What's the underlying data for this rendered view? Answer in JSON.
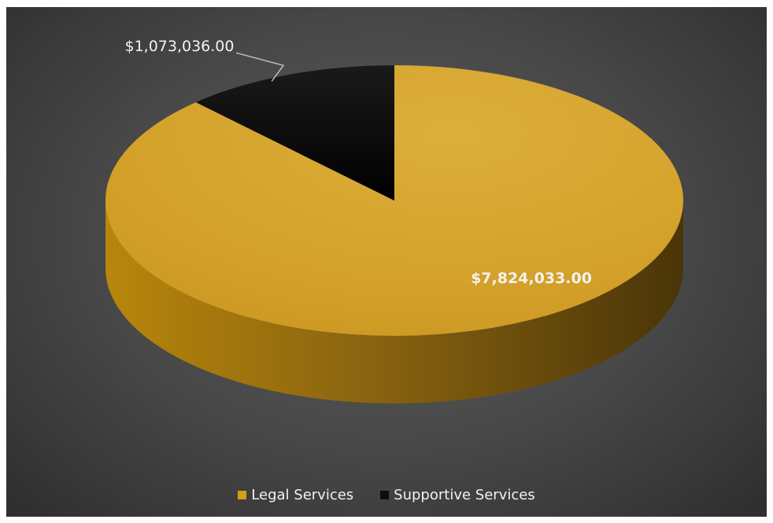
{
  "chart_data": {
    "type": "pie",
    "title": "",
    "categories": [
      "Legal Services",
      "Supportive Services"
    ],
    "values": [
      7824033.0,
      1073036.0
    ],
    "data_labels": [
      "$7,824,033.00",
      "$1,073,036.00"
    ],
    "colors": [
      "#D4A017",
      "#0D0D0D"
    ],
    "legend_position": "bottom",
    "style": "3d"
  },
  "legend": {
    "items": [
      {
        "label": "Legal Services",
        "color": "#D4A017"
      },
      {
        "label": "Supportive Services",
        "color": "#0D0D0D"
      }
    ]
  }
}
